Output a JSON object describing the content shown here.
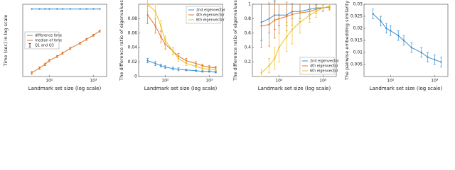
{
  "chart_data": [
    {
      "type": "line",
      "xlog": true,
      "ylog": true,
      "xlabel": "Landmark set size (log scale)",
      "ylabel": "Time (sec) in log scale",
      "x": [
        40,
        60,
        80,
        100,
        150,
        200,
        300,
        500,
        700,
        1000,
        1400
      ],
      "xlim": [
        25,
        2000
      ],
      "xticks": [
        {
          "value": 100,
          "label": "10²"
        },
        {
          "value": 1000,
          "label": "10³"
        }
      ],
      "ylim": [
        0.008,
        20
      ],
      "yticks": [],
      "legend": "center left",
      "errorbar_label": "Q1 and Q3",
      "series": [
        {
          "name": "difference time",
          "color": "#3a8fd0",
          "values": [
            12,
            12,
            12,
            12,
            12,
            12,
            12,
            12,
            12,
            12,
            12
          ]
        },
        {
          "name": "median of time",
          "color": "#e0762a",
          "values": [
            0.012,
            0.02,
            0.03,
            0.045,
            0.07,
            0.1,
            0.17,
            0.3,
            0.45,
            0.7,
            1.1
          ],
          "errors": [
            0.002,
            0.003,
            0.004,
            0.006,
            0.008,
            0.012,
            0.02,
            0.035,
            0.05,
            0.08,
            0.12
          ]
        }
      ]
    },
    {
      "type": "line",
      "xlog": true,
      "ylog": false,
      "xlabel": "Landmark set size (log scale)",
      "ylabel": "The difference ratio of eigenvalues",
      "x": [
        40,
        60,
        80,
        100,
        150,
        200,
        300,
        500,
        700,
        1000,
        1400
      ],
      "xlim": [
        25,
        2000
      ],
      "xticks": [
        {
          "value": 100,
          "label": "10²"
        },
        {
          "value": 1000,
          "label": "10³"
        }
      ],
      "ylim": [
        0,
        0.1
      ],
      "yticks": [
        0,
        0.02,
        0.04,
        0.06,
        0.08
      ],
      "legend": "upper right",
      "series": [
        {
          "name": "2nd eigenvector",
          "color": "#3a8fd0",
          "values": [
            0.022,
            0.018,
            0.015,
            0.013,
            0.011,
            0.01,
            0.009,
            0.008,
            0.007,
            0.007,
            0.006
          ],
          "errors": [
            0.003,
            0.003,
            0.002,
            0.002,
            0.002,
            0.002,
            0.001,
            0.001,
            0.001,
            0.001,
            0.001
          ]
        },
        {
          "name": "4th eigenvector",
          "color": "#e0762a",
          "values": [
            0.085,
            0.07,
            0.055,
            0.045,
            0.035,
            0.028,
            0.022,
            0.018,
            0.015,
            0.013,
            0.012
          ],
          "errors": [
            0.012,
            0.01,
            0.008,
            0.007,
            0.005,
            0.004,
            0.003,
            0.003,
            0.002,
            0.002,
            0.002
          ]
        },
        {
          "name": "6th eigenvector",
          "color": "#f0c020",
          "values": [
            0.1,
            0.09,
            0.07,
            0.05,
            0.035,
            0.025,
            0.018,
            0.014,
            0.011,
            0.01,
            0.009
          ],
          "errors": [
            0.01,
            0.01,
            0.008,
            0.006,
            0.005,
            0.004,
            0.003,
            0.002,
            0.002,
            0.001,
            0.001
          ]
        }
      ]
    },
    {
      "type": "line",
      "xlog": true,
      "ylog": false,
      "xlabel": "Landmark set size (log scale)",
      "ylabel": "The difference ratio of eigenvalues",
      "x": [
        40,
        60,
        80,
        100,
        150,
        200,
        300,
        500,
        700,
        1000,
        1400
      ],
      "xlim": [
        25,
        2000
      ],
      "xticks": [
        {
          "value": 100,
          "label": "10²"
        },
        {
          "value": 1000,
          "label": "10³"
        }
      ],
      "ylim": [
        0,
        1
      ],
      "yticks": [
        0.2,
        0.4,
        0.6,
        0.8,
        1
      ],
      "legend": "lower right",
      "series": [
        {
          "name": "2nd eigenvector",
          "color": "#3a8fd0",
          "values": [
            0.75,
            0.8,
            0.85,
            0.85,
            0.85,
            0.9,
            0.9,
            0.93,
            0.95,
            0.95,
            0.97
          ],
          "errors": [
            0.25,
            0.2,
            0.2,
            0.15,
            0.15,
            0.1,
            0.1,
            0.07,
            0.05,
            0.04,
            0.03
          ]
        },
        {
          "name": "4th eigenvector",
          "color": "#e0762a",
          "values": [
            0.7,
            0.72,
            0.78,
            0.8,
            0.83,
            0.86,
            0.88,
            0.9,
            0.93,
            0.95,
            0.96
          ],
          "errors": [
            0.3,
            0.3,
            0.25,
            0.2,
            0.2,
            0.15,
            0.12,
            0.1,
            0.06,
            0.05,
            0.04
          ]
        },
        {
          "name": "6th eigenvector",
          "color": "#f0c020",
          "values": [
            0.05,
            0.15,
            0.25,
            0.4,
            0.55,
            0.65,
            0.75,
            0.85,
            0.9,
            0.95,
            0.97
          ],
          "errors": [
            0.05,
            0.1,
            0.15,
            0.2,
            0.2,
            0.2,
            0.15,
            0.1,
            0.08,
            0.05,
            0.03
          ]
        }
      ]
    },
    {
      "type": "line",
      "xlog": true,
      "ylog": false,
      "xlabel": "Landmark set size (log scale)",
      "ylabel": "The pairwise embedding similarity",
      "x": [
        40,
        60,
        80,
        100,
        150,
        200,
        300,
        500,
        700,
        1000,
        1400
      ],
      "xlim": [
        25,
        2000
      ],
      "xticks": [
        {
          "value": 100,
          "label": "10²"
        },
        {
          "value": 1000,
          "label": "10³"
        }
      ],
      "ylim": [
        0,
        0.03
      ],
      "yticks": [
        0.005,
        0.01,
        0.015,
        0.02,
        0.025,
        0.03
      ],
      "series": [
        {
          "color": "#3a8fd0",
          "values": [
            0.026,
            0.023,
            0.02,
            0.019,
            0.017,
            0.015,
            0.012,
            0.01,
            0.008,
            0.007,
            0.006
          ],
          "errors": [
            0.002,
            0.002,
            0.002,
            0.002,
            0.002,
            0.002,
            0.002,
            0.002,
            0.002,
            0.002,
            0.002
          ]
        }
      ]
    }
  ]
}
